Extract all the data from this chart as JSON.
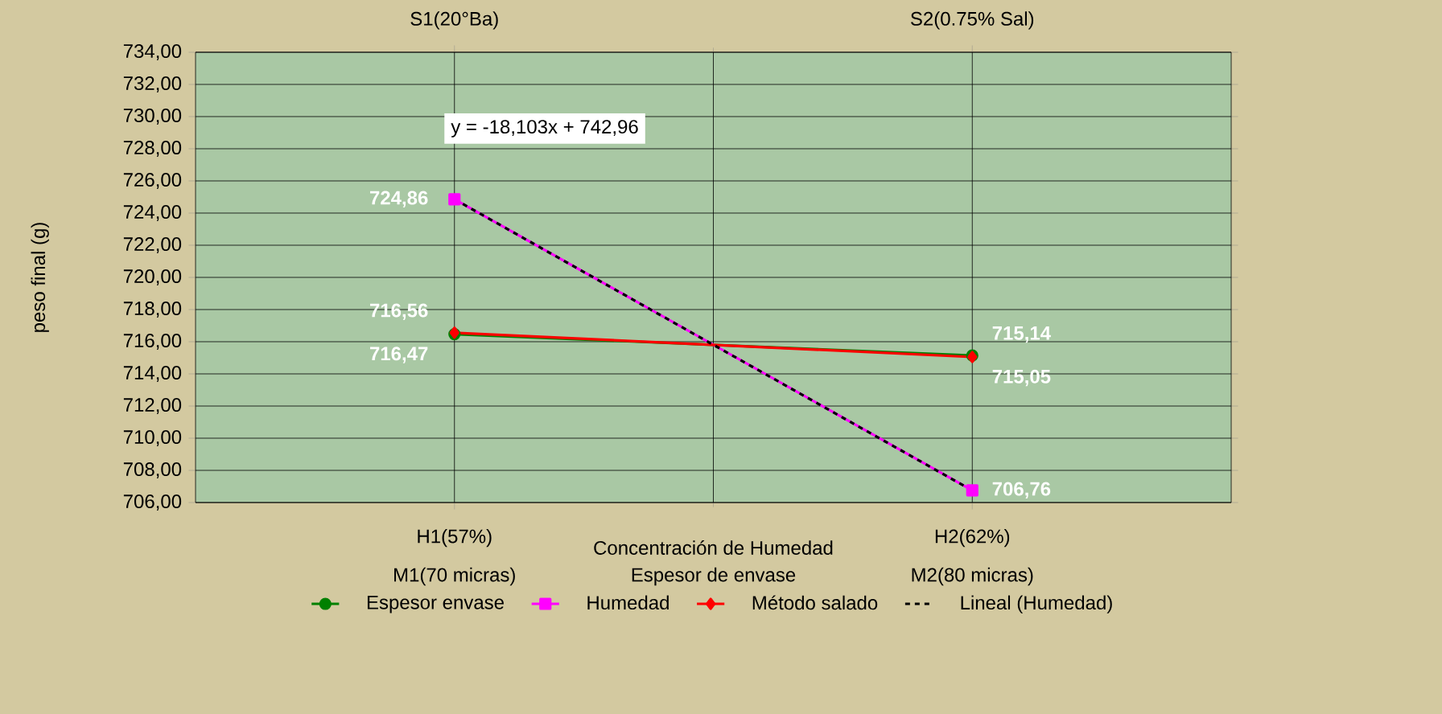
{
  "chart_data": {
    "type": "line",
    "xlabel": "Concentración de Humedad",
    "ylabel": "peso final (g)",
    "categories": [
      "H1(57%)",
      "H2(62%)"
    ],
    "ylim": [
      706,
      734
    ],
    "yticks": [
      {
        "value": 706,
        "label": "706,00"
      },
      {
        "value": 708,
        "label": "708,00"
      },
      {
        "value": 710,
        "label": "710,00"
      },
      {
        "value": 712,
        "label": "712,00"
      },
      {
        "value": 714,
        "label": "714,00"
      },
      {
        "value": 716,
        "label": "716,00"
      },
      {
        "value": 718,
        "label": "718,00"
      },
      {
        "value": 720,
        "label": "720,00"
      },
      {
        "value": 722,
        "label": "722,00"
      },
      {
        "value": 724,
        "label": "724,00"
      },
      {
        "value": 726,
        "label": "726,00"
      },
      {
        "value": 728,
        "label": "728,00"
      },
      {
        "value": 730,
        "label": "730,00"
      },
      {
        "value": 732,
        "label": "732,00"
      },
      {
        "value": 734,
        "label": "734,00"
      }
    ],
    "grid": true,
    "legend": "bottom",
    "series": [
      {
        "name": "Espesor envase",
        "color": "#008000",
        "marker": "circle",
        "values": [
          716.47,
          715.14
        ],
        "value_labels": [
          "716,47",
          "715,14"
        ]
      },
      {
        "name": "Humedad",
        "color": "#ff00ff",
        "marker": "square",
        "values": [
          724.86,
          706.76
        ],
        "value_labels": [
          "724,86",
          "706,76"
        ]
      },
      {
        "name": "Método salado",
        "color": "#ff0000",
        "marker": "diamond",
        "values": [
          716.56,
          715.05
        ],
        "value_labels": [
          "716,56",
          "715,05"
        ]
      },
      {
        "name": "Lineal (Humedad)",
        "color": "#000000",
        "marker": "none",
        "line_style": "dashed",
        "values": [
          724.86,
          706.75
        ]
      }
    ],
    "annotations": [
      "y = -18,103x + 742,96",
      "S1(20°Ba)",
      "S2(0.75% Sal)",
      "M1(70 micras)",
      "Espesor de envase",
      "M2(80 micras)"
    ]
  }
}
